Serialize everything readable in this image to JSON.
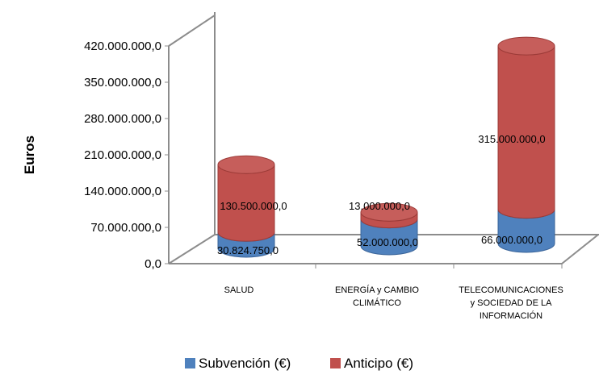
{
  "chart_data": {
    "type": "bar",
    "style": "3d-cylinder-stacked",
    "categories": [
      "SALUD",
      "ENERGÍA y CAMBIO CLIMÁTICO",
      "TELECOMUNICACIONES y SOCIEDAD DE LA INFORMACIÓN"
    ],
    "category_lines": [
      [
        "SALUD"
      ],
      [
        "ENERGÍA y CAMBIO",
        "CLIMÁTICO"
      ],
      [
        "TELECOMUNICACIONES",
        "y SOCIEDAD DE LA",
        "INFORMACIÓN"
      ]
    ],
    "series": [
      {
        "name": "Subvención (€)",
        "color": "#4F81BD",
        "values": [
          30824750,
          52000000,
          66000000
        ],
        "labels": [
          "30.824.750,0",
          "52.000.000,0",
          "66.000.000,0"
        ]
      },
      {
        "name": "Anticipo (€)",
        "color": "#C0504D",
        "values": [
          130500000,
          13000000,
          315000000
        ],
        "labels": [
          "130.500.000,0",
          "13.000.000,0",
          "315.000.000,0"
        ]
      }
    ],
    "ylabel": "Euros",
    "ylim": [
      0,
      420000000
    ],
    "yticks": [
      0,
      70000000,
      140000000,
      210000000,
      280000000,
      350000000,
      420000000
    ],
    "ytick_labels": [
      "0,0",
      "70.000.000,0",
      "140.000.000,0",
      "210.000.000,0",
      "280.000.000,0",
      "350.000.000,0",
      "420.000.000,0"
    ],
    "grid": false,
    "legend_position": "bottom"
  }
}
